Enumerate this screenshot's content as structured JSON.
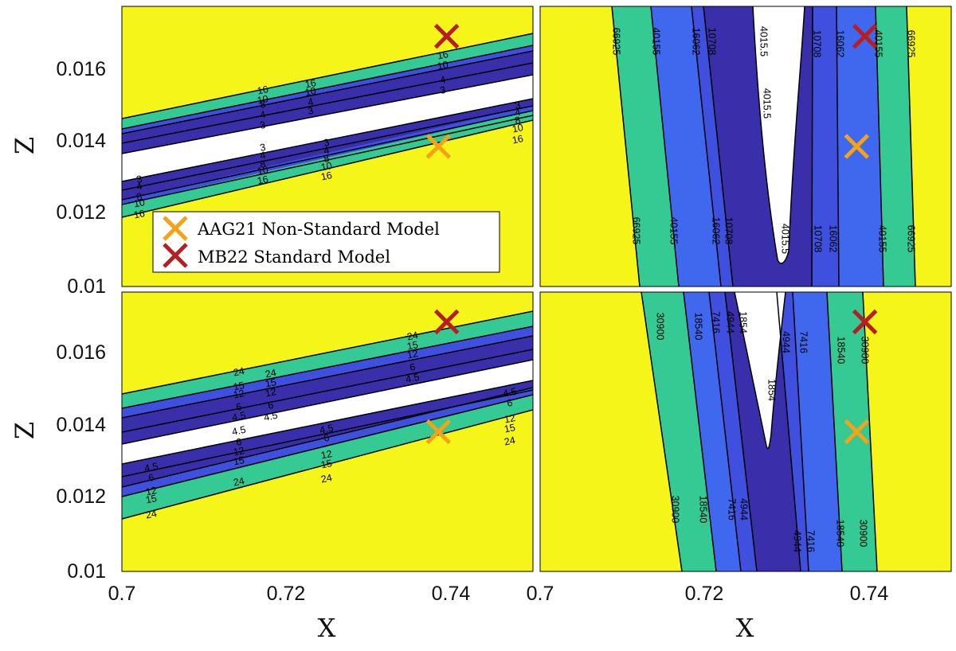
{
  "chart_data": [
    {
      "type": "contour",
      "panel": "top-left",
      "xlim": [
        0.7,
        0.75
      ],
      "ylim": [
        0.01,
        0.0175
      ],
      "colors": [
        "#f5f519",
        "#35c994",
        "#4050de",
        "#3a2faa",
        "#ffffff"
      ],
      "levels": [
        "16",
        "10",
        "8",
        "4",
        "3"
      ],
      "label_sets": [
        [
          "16",
          "10",
          "8",
          "4",
          "3",
          "3",
          "4",
          "8",
          "10",
          "16"
        ],
        [
          "3",
          "4",
          "8",
          "10",
          "16"
        ],
        [
          "16",
          "10",
          "4",
          "3"
        ],
        [
          "16",
          "10",
          "4",
          "3"
        ],
        [
          "3",
          "4",
          "8",
          "10",
          "16"
        ],
        [
          "3",
          "4",
          "8",
          "10",
          "16"
        ]
      ],
      "markers": [
        {
          "name": "AAG21 Non-Standard Model",
          "x": 0.7385,
          "y": 0.01375,
          "color": "#f4a218"
        },
        {
          "name": "MB22 Standard Model",
          "x": 0.7395,
          "y": 0.0167,
          "color": "#b51f24"
        }
      ],
      "legend": "bottom-left"
    },
    {
      "type": "contour",
      "panel": "top-right",
      "xlim": [
        0.7,
        0.75
      ],
      "ylim": [
        0.01,
        0.0175
      ],
      "colors": [
        "#f5f519",
        "#35c994",
        "#4068ee",
        "#4050de",
        "#3a2faa",
        "#ffffff"
      ],
      "levels": [
        "66925",
        "40155",
        "16062",
        "10708",
        "4015.5"
      ],
      "label_sets": [
        [
          "66925",
          "40155",
          "16062",
          "10708",
          "4015.5",
          "4015.5",
          "10708",
          "16062",
          "40155",
          "66925"
        ],
        [
          "66925",
          "40155",
          "16062",
          "10708",
          "4015.5",
          "10708",
          "16062",
          "40155",
          "66925"
        ]
      ],
      "markers": [
        {
          "name": "AAG21 Non-Standard Model",
          "x": 0.7385,
          "y": 0.01375,
          "color": "#f4a218"
        },
        {
          "name": "MB22 Standard Model",
          "x": 0.7395,
          "y": 0.0167,
          "color": "#b51f24"
        }
      ]
    },
    {
      "type": "contour",
      "panel": "bottom-left",
      "xlim": [
        0.7,
        0.75
      ],
      "ylim": [
        0.01,
        0.0175
      ],
      "colors": [
        "#f5f519",
        "#35c994",
        "#4050de",
        "#3a2faa",
        "#ffffff"
      ],
      "levels": [
        "24",
        "15",
        "12",
        "6",
        "4.5"
      ],
      "label_sets": [
        [
          "24",
          "15",
          "12",
          "6",
          "4.5",
          "4.5",
          "6",
          "12",
          "15",
          "24"
        ],
        [
          "24",
          "15",
          "12",
          "6",
          "4.5"
        ],
        [
          "4.5",
          "6",
          "12",
          "15",
          "24"
        ],
        [
          "4.5",
          "6",
          "12",
          "15",
          "24"
        ],
        [
          "24",
          "15",
          "12",
          "6",
          "4.5"
        ],
        [
          "4.5",
          "6",
          "12",
          "15",
          "24"
        ]
      ],
      "markers": [
        {
          "name": "AAG21 Non-Standard Model",
          "x": 0.7385,
          "y": 0.01375,
          "color": "#f4a218"
        },
        {
          "name": "MB22 Standard Model",
          "x": 0.7395,
          "y": 0.0167,
          "color": "#b51f24"
        }
      ]
    },
    {
      "type": "contour",
      "panel": "bottom-right",
      "xlim": [
        0.7,
        0.75
      ],
      "ylim": [
        0.01,
        0.0175
      ],
      "colors": [
        "#f5f519",
        "#35c994",
        "#4068ee",
        "#4050de",
        "#3a2faa",
        "#ffffff"
      ],
      "levels": [
        "30900",
        "18540",
        "7416",
        "4944",
        "1854"
      ],
      "label_sets": [
        [
          "30900",
          "18540",
          "7416",
          "4944",
          "1854",
          "1854",
          "4944",
          "7416",
          "18540",
          "30900"
        ],
        [
          "30900",
          "18540",
          "7416",
          "4944",
          "4944",
          "7416",
          "18540",
          "30900"
        ]
      ],
      "markers": [
        {
          "name": "AAG21 Non-Standard Model",
          "x": 0.7385,
          "y": 0.01375,
          "color": "#f4a218"
        },
        {
          "name": "MB22 Standard Model",
          "x": 0.7395,
          "y": 0.0167,
          "color": "#b51f24"
        }
      ]
    }
  ],
  "axes": {
    "ylabel": "Z",
    "xlabel": "X",
    "yticks": [
      "0.016",
      "0.014",
      "0.012",
      "0.01"
    ],
    "xticks_left": [
      "0.7",
      "0.72",
      "0.74"
    ],
    "xticks_right": [
      "0.7",
      "0.72",
      "0.74"
    ]
  },
  "legend": {
    "items": [
      {
        "label": "AAG21 Non-Standard Model",
        "color": "#f4a218"
      },
      {
        "label": "MB22 Standard Model",
        "color": "#b51f24"
      }
    ]
  }
}
